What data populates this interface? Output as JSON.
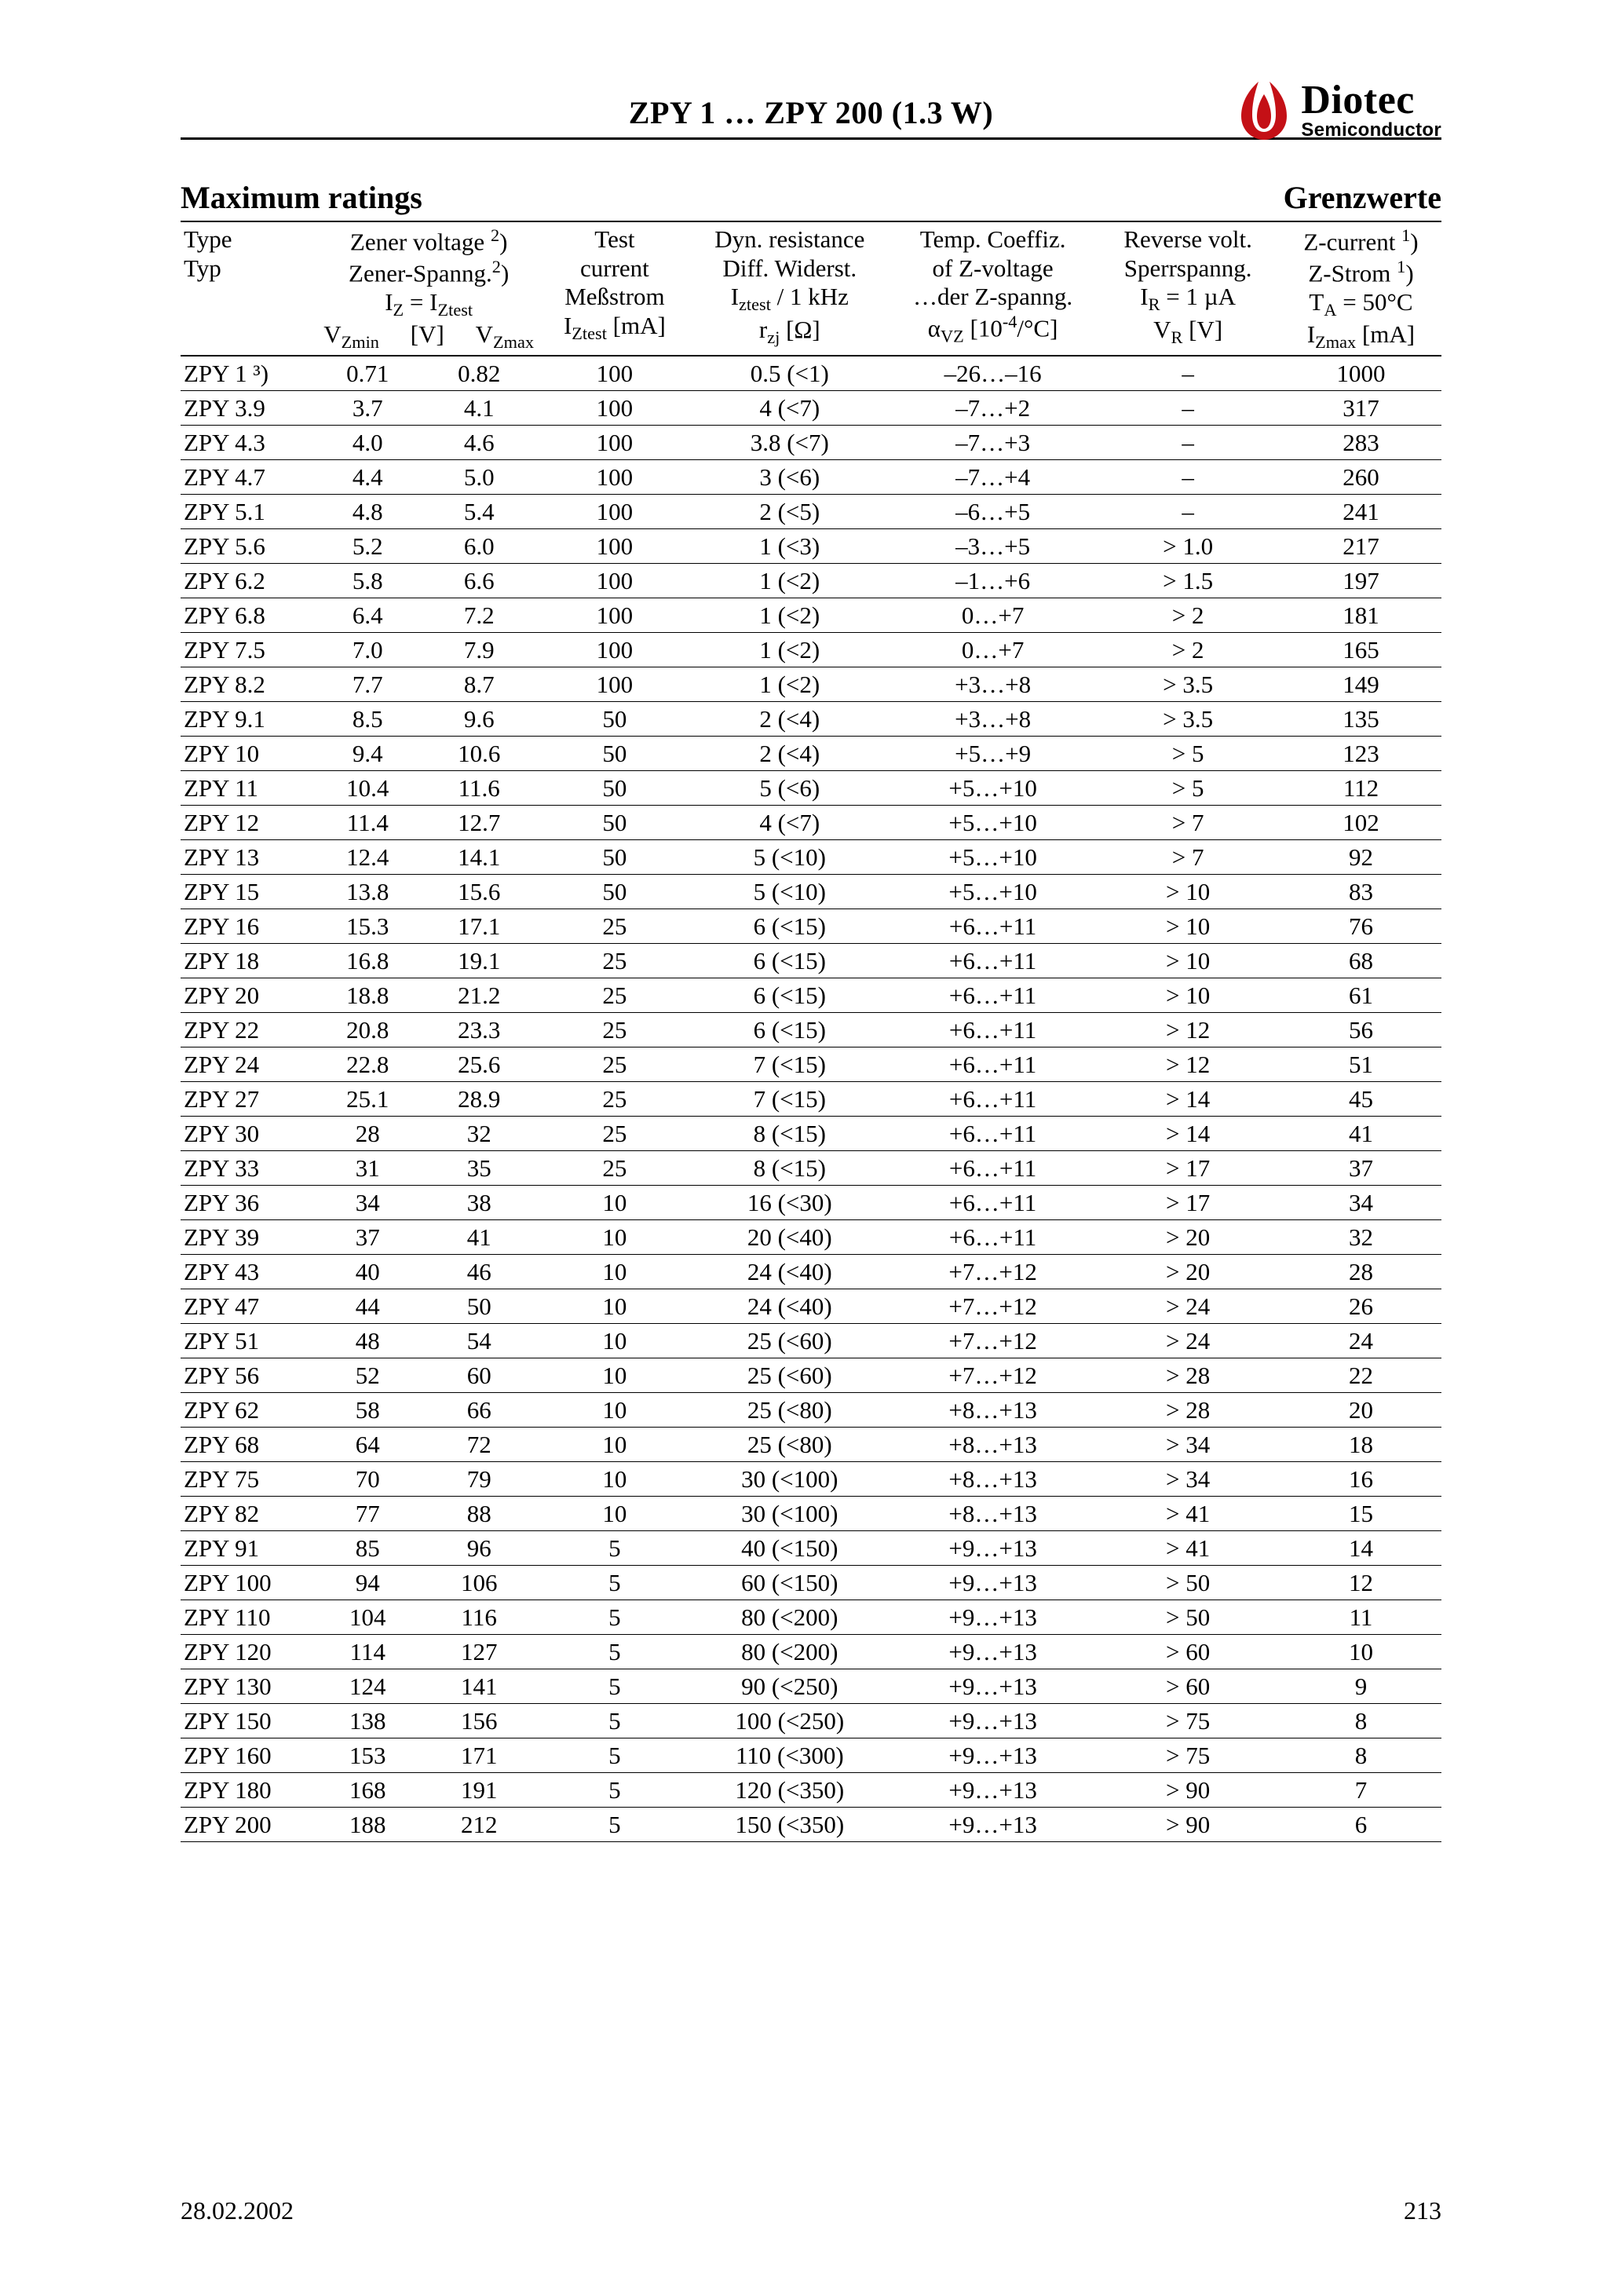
{
  "header": {
    "title": "ZPY 1 … ZPY 200 (1.3 W)",
    "brand": "Diotec",
    "sub": "Semiconductor",
    "logo_color": "#c41016"
  },
  "section": {
    "left": "Maximum ratings",
    "right": "Grenzwerte"
  },
  "columns": {
    "type": {
      "l1": "Type",
      "l2": "Typ",
      "l3": "",
      "l4": ""
    },
    "zener": {
      "l1": "Zener voltage ²)",
      "l2": "Zener-Spanng.²)",
      "l3": "I_Z = I_Ztest",
      "l4_left": "V_Zmin",
      "l4_mid": "[V]",
      "l4_right": "V_Zmax"
    },
    "itest": {
      "l1": "Test",
      "l2": "current",
      "l3": "Meßstrom",
      "l4": "I_Ztest [mA]"
    },
    "rzj": {
      "l1": "Dyn. resistance",
      "l2": "Diff. Widerst.",
      "l3": "I_ztest / 1 kHz",
      "l4": "r_zj [Ω]"
    },
    "avz": {
      "l1": "Temp. Coeffiz.",
      "l2": "of Z-voltage",
      "l3": "…der Z-spanng.",
      "l4": "α_VZ [10⁻⁴/°C]"
    },
    "vr": {
      "l1": "Reverse volt.",
      "l2": "Sperrspanng.",
      "l3": "I_R = 1 µA",
      "l4": "V_R [V]"
    },
    "izmax": {
      "l1": "Z-current ¹)",
      "l2": "Z-Strom ¹)",
      "l3": "T_A = 50°C",
      "l4": "I_Zmax [mA]"
    }
  },
  "rows": [
    {
      "type": "ZPY 1 ³)",
      "vmin": "0.71",
      "vmax": "0.82",
      "itest": "100",
      "rzj": "0.5 (<1)",
      "avz": "–26…–16",
      "vr": "–",
      "izmax": "1000"
    },
    {
      "type": "ZPY 3.9",
      "vmin": "3.7",
      "vmax": "4.1",
      "itest": "100",
      "rzj": "4 (<7)",
      "avz": "–7…+2",
      "vr": "–",
      "izmax": "317"
    },
    {
      "type": "ZPY 4.3",
      "vmin": "4.0",
      "vmax": "4.6",
      "itest": "100",
      "rzj": "3.8 (<7)",
      "avz": "–7…+3",
      "vr": "–",
      "izmax": "283"
    },
    {
      "type": "ZPY 4.7",
      "vmin": "4.4",
      "vmax": "5.0",
      "itest": "100",
      "rzj": "3 (<6)",
      "avz": "–7…+4",
      "vr": "–",
      "izmax": "260"
    },
    {
      "type": "ZPY 5.1",
      "vmin": "4.8",
      "vmax": "5.4",
      "itest": "100",
      "rzj": "2 (<5)",
      "avz": "–6…+5",
      "vr": "–",
      "izmax": "241"
    },
    {
      "type": "ZPY 5.6",
      "vmin": "5.2",
      "vmax": "6.0",
      "itest": "100",
      "rzj": "1 (<3)",
      "avz": "–3…+5",
      "vr": "> 1.0",
      "izmax": "217"
    },
    {
      "type": "ZPY 6.2",
      "vmin": "5.8",
      "vmax": "6.6",
      "itest": "100",
      "rzj": "1 (<2)",
      "avz": "–1…+6",
      "vr": "> 1.5",
      "izmax": "197"
    },
    {
      "type": "ZPY 6.8",
      "vmin": "6.4",
      "vmax": "7.2",
      "itest": "100",
      "rzj": "1 (<2)",
      "avz": "0…+7",
      "vr": "> 2",
      "izmax": "181"
    },
    {
      "type": "ZPY 7.5",
      "vmin": "7.0",
      "vmax": "7.9",
      "itest": "100",
      "rzj": "1 (<2)",
      "avz": "0…+7",
      "vr": "> 2",
      "izmax": "165"
    },
    {
      "type": "ZPY 8.2",
      "vmin": "7.7",
      "vmax": "8.7",
      "itest": "100",
      "rzj": "1 (<2)",
      "avz": "+3…+8",
      "vr": "> 3.5",
      "izmax": "149"
    },
    {
      "type": "ZPY 9.1",
      "vmin": "8.5",
      "vmax": "9.6",
      "itest": "50",
      "rzj": "2 (<4)",
      "avz": "+3…+8",
      "vr": "> 3.5",
      "izmax": "135"
    },
    {
      "type": "ZPY 10",
      "vmin": "9.4",
      "vmax": "10.6",
      "itest": "50",
      "rzj": "2 (<4)",
      "avz": "+5…+9",
      "vr": "> 5",
      "izmax": "123"
    },
    {
      "type": "ZPY 11",
      "vmin": "10.4",
      "vmax": "11.6",
      "itest": "50",
      "rzj": "5 (<6)",
      "avz": "+5…+10",
      "vr": "> 5",
      "izmax": "112"
    },
    {
      "type": "ZPY 12",
      "vmin": "11.4",
      "vmax": "12.7",
      "itest": "50",
      "rzj": "4 (<7)",
      "avz": "+5…+10",
      "vr": "> 7",
      "izmax": "102"
    },
    {
      "type": "ZPY 13",
      "vmin": "12.4",
      "vmax": "14.1",
      "itest": "50",
      "rzj": "5 (<10)",
      "avz": "+5…+10",
      "vr": "> 7",
      "izmax": "92"
    },
    {
      "type": "ZPY 15",
      "vmin": "13.8",
      "vmax": "15.6",
      "itest": "50",
      "rzj": "5 (<10)",
      "avz": "+5…+10",
      "vr": "> 10",
      "izmax": "83"
    },
    {
      "type": "ZPY 16",
      "vmin": "15.3",
      "vmax": "17.1",
      "itest": "25",
      "rzj": "6 (<15)",
      "avz": "+6…+11",
      "vr": "> 10",
      "izmax": "76"
    },
    {
      "type": "ZPY 18",
      "vmin": "16.8",
      "vmax": "19.1",
      "itest": "25",
      "rzj": "6 (<15)",
      "avz": "+6…+11",
      "vr": "> 10",
      "izmax": "68"
    },
    {
      "type": "ZPY 20",
      "vmin": "18.8",
      "vmax": "21.2",
      "itest": "25",
      "rzj": "6 (<15)",
      "avz": "+6…+11",
      "vr": "> 10",
      "izmax": "61"
    },
    {
      "type": "ZPY 22",
      "vmin": "20.8",
      "vmax": "23.3",
      "itest": "25",
      "rzj": "6 (<15)",
      "avz": "+6…+11",
      "vr": "> 12",
      "izmax": "56"
    },
    {
      "type": "ZPY 24",
      "vmin": "22.8",
      "vmax": "25.6",
      "itest": "25",
      "rzj": "7 (<15)",
      "avz": "+6…+11",
      "vr": "> 12",
      "izmax": "51"
    },
    {
      "type": "ZPY 27",
      "vmin": "25.1",
      "vmax": "28.9",
      "itest": "25",
      "rzj": "7 (<15)",
      "avz": "+6…+11",
      "vr": "> 14",
      "izmax": "45"
    },
    {
      "type": "ZPY 30",
      "vmin": "28",
      "vmax": "32",
      "itest": "25",
      "rzj": "8 (<15)",
      "avz": "+6…+11",
      "vr": "> 14",
      "izmax": "41"
    },
    {
      "type": "ZPY 33",
      "vmin": "31",
      "vmax": "35",
      "itest": "25",
      "rzj": "8 (<15)",
      "avz": "+6…+11",
      "vr": "> 17",
      "izmax": "37"
    },
    {
      "type": "ZPY 36",
      "vmin": "34",
      "vmax": "38",
      "itest": "10",
      "rzj": "16 (<30)",
      "avz": "+6…+11",
      "vr": "> 17",
      "izmax": "34"
    },
    {
      "type": "ZPY 39",
      "vmin": "37",
      "vmax": "41",
      "itest": "10",
      "rzj": "20 (<40)",
      "avz": "+6…+11",
      "vr": "> 20",
      "izmax": "32"
    },
    {
      "type": "ZPY 43",
      "vmin": "40",
      "vmax": "46",
      "itest": "10",
      "rzj": "24 (<40)",
      "avz": "+7…+12",
      "vr": "> 20",
      "izmax": "28"
    },
    {
      "type": "ZPY 47",
      "vmin": "44",
      "vmax": "50",
      "itest": "10",
      "rzj": "24 (<40)",
      "avz": "+7…+12",
      "vr": "> 24",
      "izmax": "26"
    },
    {
      "type": "ZPY 51",
      "vmin": "48",
      "vmax": "54",
      "itest": "10",
      "rzj": "25 (<60)",
      "avz": "+7…+12",
      "vr": "> 24",
      "izmax": "24"
    },
    {
      "type": "ZPY 56",
      "vmin": "52",
      "vmax": "60",
      "itest": "10",
      "rzj": "25 (<60)",
      "avz": "+7…+12",
      "vr": "> 28",
      "izmax": "22"
    },
    {
      "type": "ZPY 62",
      "vmin": "58",
      "vmax": "66",
      "itest": "10",
      "rzj": "25 (<80)",
      "avz": "+8…+13",
      "vr": "> 28",
      "izmax": "20"
    },
    {
      "type": "ZPY 68",
      "vmin": "64",
      "vmax": "72",
      "itest": "10",
      "rzj": "25 (<80)",
      "avz": "+8…+13",
      "vr": "> 34",
      "izmax": "18"
    },
    {
      "type": "ZPY 75",
      "vmin": "70",
      "vmax": "79",
      "itest": "10",
      "rzj": "30 (<100)",
      "avz": "+8…+13",
      "vr": "> 34",
      "izmax": "16"
    },
    {
      "type": "ZPY 82",
      "vmin": "77",
      "vmax": "88",
      "itest": "10",
      "rzj": "30 (<100)",
      "avz": "+8…+13",
      "vr": "> 41",
      "izmax": "15"
    },
    {
      "type": "ZPY 91",
      "vmin": "85",
      "vmax": "96",
      "itest": "5",
      "rzj": "40 (<150)",
      "avz": "+9…+13",
      "vr": "> 41",
      "izmax": "14"
    },
    {
      "type": "ZPY 100",
      "vmin": "94",
      "vmax": "106",
      "itest": "5",
      "rzj": "60 (<150)",
      "avz": "+9…+13",
      "vr": "> 50",
      "izmax": "12"
    },
    {
      "type": "ZPY 110",
      "vmin": "104",
      "vmax": "116",
      "itest": "5",
      "rzj": "80 (<200)",
      "avz": "+9…+13",
      "vr": "> 50",
      "izmax": "11"
    },
    {
      "type": "ZPY 120",
      "vmin": "114",
      "vmax": "127",
      "itest": "5",
      "rzj": "80 (<200)",
      "avz": "+9…+13",
      "vr": "> 60",
      "izmax": "10"
    },
    {
      "type": "ZPY 130",
      "vmin": "124",
      "vmax": "141",
      "itest": "5",
      "rzj": "90 (<250)",
      "avz": "+9…+13",
      "vr": "> 60",
      "izmax": "9"
    },
    {
      "type": "ZPY 150",
      "vmin": "138",
      "vmax": "156",
      "itest": "5",
      "rzj": "100 (<250)",
      "avz": "+9…+13",
      "vr": "> 75",
      "izmax": "8"
    },
    {
      "type": "ZPY 160",
      "vmin": "153",
      "vmax": "171",
      "itest": "5",
      "rzj": "110 (<300)",
      "avz": "+9…+13",
      "vr": "> 75",
      "izmax": "8"
    },
    {
      "type": "ZPY 180",
      "vmin": "168",
      "vmax": "191",
      "itest": "5",
      "rzj": "120 (<350)",
      "avz": "+9…+13",
      "vr": "> 90",
      "izmax": "7"
    },
    {
      "type": "ZPY 200",
      "vmin": "188",
      "vmax": "212",
      "itest": "5",
      "rzj": "150 (<350)",
      "avz": "+9…+13",
      "vr": "> 90",
      "izmax": "6"
    }
  ],
  "footer": {
    "date": "28.02.2002",
    "page": "213"
  }
}
